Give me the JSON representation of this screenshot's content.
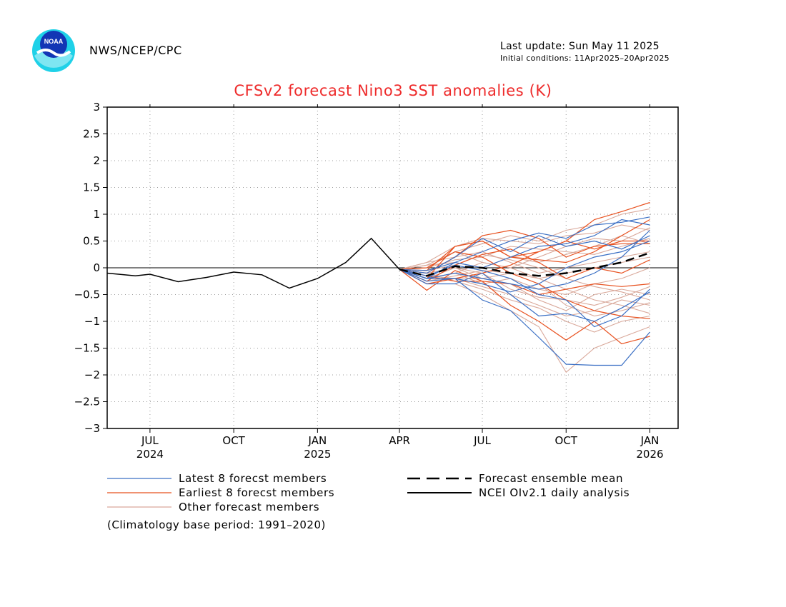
{
  "header": {
    "agency": "NWS/NCEP/CPC",
    "logo_text": "NOAA",
    "last_update": "Last update: Sun May 11 2025",
    "initial_conditions": "Initial conditions: 11Apr2025–20Apr2025"
  },
  "colors": {
    "title": "#ee2b2b",
    "latest": "#3a6fc4",
    "earliest": "#e8501e",
    "other": "#d9a89a",
    "mean": "#000000",
    "analysis": "#000000"
  },
  "legend": {
    "latest": "Latest 8 forecst members",
    "earliest": "Earliest 8 forecst members",
    "other": "Other forecast members",
    "mean": "Forecast ensemble mean",
    "analysis": "NCEI OIv2.1 daily analysis"
  },
  "note": "(Climatology base period: 1991–2020)",
  "chart_data": {
    "type": "line",
    "title": "CFSv2 forecast Nino3 SST anomalies (K)",
    "xlabel": "",
    "ylabel": "",
    "ylim": [
      -3,
      3
    ],
    "xlim": [
      "2024-05-15",
      "2026-02-01"
    ],
    "yticks": [
      "3",
      "2.5",
      "2",
      "1.5",
      "1",
      "0.5",
      "0",
      "−0.5",
      "−1",
      "−1.5",
      "−2",
      "−2.5",
      "−3"
    ],
    "xticks": [
      {
        "date": "2024-07-01",
        "label": "JUL",
        "year": "2024"
      },
      {
        "date": "2024-10-01",
        "label": "OCT",
        "year": ""
      },
      {
        "date": "2025-01-01",
        "label": "JAN",
        "year": "2025"
      },
      {
        "date": "2025-04-01",
        "label": "APR",
        "year": ""
      },
      {
        "date": "2025-07-01",
        "label": "JUL",
        "year": ""
      },
      {
        "date": "2025-10-01",
        "label": "OCT",
        "year": ""
      },
      {
        "date": "2026-01-01",
        "label": "JAN",
        "year": "2026"
      }
    ],
    "grid": true,
    "zero_line": true,
    "analysis": {
      "name": "NCEI OIv2.1 daily analysis",
      "x": [
        "2024-05-15",
        "2024-06-15",
        "2024-07-01",
        "2024-08-01",
        "2024-09-01",
        "2024-10-01",
        "2024-11-01",
        "2024-12-01",
        "2025-01-01",
        "2025-02-01",
        "2025-03-01",
        "2025-04-01"
      ],
      "y": [
        -0.1,
        -0.15,
        -0.12,
        -0.26,
        -0.18,
        -0.08,
        -0.13,
        -0.38,
        -0.2,
        0.1,
        0.55,
        -0.03
      ]
    },
    "forecast_x": [
      "2025-04-01",
      "2025-05-01",
      "2025-06-01",
      "2025-07-01",
      "2025-08-01",
      "2025-09-01",
      "2025-10-01",
      "2025-11-01",
      "2025-12-01",
      "2026-01-01"
    ],
    "ensemble_mean": {
      "name": "Forecast ensemble mean",
      "y": [
        -0.03,
        -0.15,
        0.03,
        0.0,
        -0.1,
        -0.15,
        -0.1,
        0.0,
        0.1,
        0.28
      ]
    },
    "earliest_members": {
      "name": "Earliest 8 forecst members",
      "series": [
        [
          -0.03,
          -0.42,
          -0.05,
          -0.25,
          -0.7,
          -1.0,
          -1.35,
          -1.0,
          -1.42,
          -1.28
        ],
        [
          -0.03,
          -0.2,
          0.4,
          0.5,
          0.2,
          0.3,
          0.5,
          0.9,
          1.05,
          1.22
        ],
        [
          -0.03,
          -0.1,
          0.2,
          0.6,
          0.7,
          0.55,
          0.2,
          0.4,
          0.45,
          0.45
        ],
        [
          -0.03,
          0.0,
          0.3,
          0.2,
          -0.1,
          -0.3,
          -0.6,
          -0.8,
          -0.9,
          -0.95
        ],
        [
          -0.03,
          -0.3,
          -0.2,
          -0.1,
          0.05,
          0.3,
          0.5,
          0.35,
          0.5,
          0.5
        ],
        [
          -0.03,
          -0.05,
          0.4,
          0.5,
          0.2,
          0.15,
          0.1,
          0.3,
          0.6,
          0.9
        ],
        [
          -0.03,
          -0.15,
          -0.25,
          -0.25,
          -0.3,
          -0.5,
          -0.4,
          -0.3,
          -0.35,
          -0.3
        ],
        [
          -0.03,
          -0.25,
          0.05,
          0.25,
          0.35,
          0.1,
          -0.2,
          0.0,
          -0.1,
          0.15
        ]
      ]
    },
    "latest_members": {
      "name": "Latest 8 forecst members",
      "series": [
        [
          -0.03,
          -0.25,
          -0.2,
          -0.6,
          -0.8,
          -1.3,
          -1.8,
          -1.82,
          -1.82,
          -1.2
        ],
        [
          -0.03,
          -0.2,
          0.1,
          0.3,
          0.5,
          0.65,
          0.55,
          0.8,
          0.85,
          0.95
        ],
        [
          -0.03,
          -0.3,
          -0.3,
          -0.1,
          -0.5,
          -0.9,
          -0.85,
          -1.0,
          -0.75,
          -0.45
        ],
        [
          -0.03,
          -0.1,
          0.2,
          0.55,
          0.3,
          0.6,
          0.4,
          0.5,
          0.35,
          0.6
        ],
        [
          -0.03,
          -0.2,
          -0.1,
          -0.2,
          -0.3,
          -0.4,
          -0.3,
          -0.1,
          0.2,
          0.7
        ],
        [
          -0.03,
          -0.15,
          0.05,
          -0.05,
          -0.2,
          -0.5,
          -0.6,
          -1.1,
          -0.9,
          -0.4
        ],
        [
          -0.03,
          -0.2,
          -0.2,
          -0.3,
          -0.45,
          -0.3,
          0.0,
          0.2,
          0.3,
          0.5
        ],
        [
          -0.03,
          -0.05,
          0.1,
          0.0,
          0.2,
          0.4,
          0.45,
          0.6,
          0.9,
          0.8
        ]
      ]
    },
    "other_members": {
      "name": "Other forecast members",
      "series": [
        [
          -0.03,
          -0.2,
          -0.1,
          0.1,
          0.0,
          -0.2,
          -0.4,
          -0.6,
          -0.7,
          -0.85
        ],
        [
          -0.03,
          -0.3,
          -0.3,
          -0.5,
          -0.8,
          -1.1,
          -1.95,
          -1.5,
          -1.3,
          -1.1
        ],
        [
          -0.03,
          0.05,
          0.3,
          0.45,
          0.6,
          0.5,
          0.7,
          0.8,
          1.0,
          1.1
        ],
        [
          -0.03,
          -0.1,
          0.0,
          -0.2,
          -0.3,
          -0.6,
          -0.8,
          -0.5,
          -0.4,
          -0.5
        ],
        [
          -0.03,
          0.1,
          0.2,
          0.3,
          0.1,
          -0.1,
          0.0,
          0.1,
          0.2,
          0.3
        ],
        [
          -0.03,
          -0.15,
          -0.2,
          -0.35,
          -0.5,
          -0.7,
          -0.9,
          -0.8,
          -0.6,
          -0.7
        ],
        [
          -0.03,
          0.0,
          0.15,
          0.2,
          0.4,
          0.35,
          0.3,
          0.25,
          0.4,
          0.55
        ],
        [
          -0.03,
          -0.2,
          -0.1,
          -0.3,
          -0.2,
          -0.4,
          -0.5,
          -0.3,
          -0.2,
          0.0
        ],
        [
          -0.03,
          0.1,
          0.4,
          0.55,
          0.5,
          0.45,
          0.6,
          0.65,
          0.8,
          0.7
        ],
        [
          -0.03,
          -0.25,
          -0.15,
          -0.05,
          -0.1,
          -0.2,
          -0.1,
          0.0,
          0.1,
          0.2
        ],
        [
          -0.03,
          -0.1,
          -0.25,
          -0.4,
          -0.6,
          -0.75,
          -1.0,
          -1.2,
          -1.0,
          -0.9
        ],
        [
          -0.03,
          0.05,
          0.1,
          0.0,
          0.2,
          0.1,
          0.25,
          0.4,
          0.6,
          0.45
        ],
        [
          -0.03,
          -0.05,
          0.05,
          0.25,
          0.15,
          0.0,
          -0.2,
          -0.35,
          -0.45,
          -0.6
        ],
        [
          -0.03,
          -0.2,
          0.0,
          -0.1,
          -0.4,
          -0.55,
          -0.6,
          -0.7,
          -0.55,
          -0.35
        ],
        [
          -0.03,
          0.0,
          0.3,
          0.1,
          0.0,
          0.2,
          0.4,
          0.55,
          0.5,
          0.75
        ],
        [
          -0.03,
          -0.3,
          -0.2,
          -0.2,
          -0.1,
          -0.3,
          -0.7,
          -0.9,
          -0.8,
          -0.65
        ]
      ]
    }
  }
}
